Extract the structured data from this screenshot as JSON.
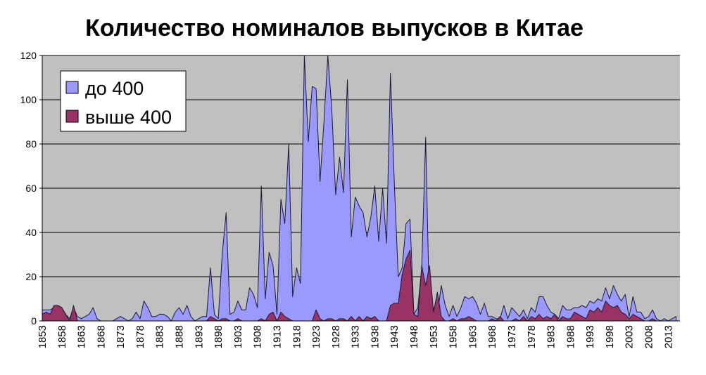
{
  "chart_data": {
    "type": "area",
    "title": "Количество номиналов выпусков в Китае",
    "xlabel": "",
    "ylabel": "",
    "xlim": [
      1853,
      2016
    ],
    "ylim": [
      0,
      120
    ],
    "yticks": [
      0,
      20,
      40,
      60,
      80,
      100,
      120
    ],
    "xticks": [
      1853,
      1858,
      1863,
      1868,
      1873,
      1878,
      1883,
      1888,
      1893,
      1898,
      1903,
      1908,
      1913,
      1918,
      1923,
      1928,
      1933,
      1938,
      1943,
      1948,
      1953,
      1958,
      1963,
      1968,
      1973,
      1978,
      1983,
      1988,
      1993,
      1998,
      2003,
      2008,
      2013
    ],
    "grid": true,
    "legend_position": "top-left",
    "colors": {
      "plot_bg": "#c0c0c0",
      "series_low": "#9999ff",
      "series_high": "#993366",
      "outline": "#1a1a33"
    },
    "series": [
      {
        "name": "до 400",
        "points": [
          [
            1853,
            5
          ],
          [
            1854,
            5
          ],
          [
            1855,
            5
          ],
          [
            1856,
            6
          ],
          [
            1857,
            7
          ],
          [
            1858,
            6
          ],
          [
            1859,
            3
          ],
          [
            1860,
            1
          ],
          [
            1861,
            6
          ],
          [
            1862,
            2
          ],
          [
            1863,
            1
          ],
          [
            1864,
            2
          ],
          [
            1865,
            3
          ],
          [
            1866,
            6
          ],
          [
            1867,
            1
          ],
          [
            1868,
            0
          ],
          [
            1869,
            0
          ],
          [
            1870,
            0
          ],
          [
            1871,
            0
          ],
          [
            1872,
            1
          ],
          [
            1873,
            2
          ],
          [
            1874,
            1
          ],
          [
            1875,
            0
          ],
          [
            1876,
            1
          ],
          [
            1877,
            4
          ],
          [
            1878,
            1
          ],
          [
            1879,
            9
          ],
          [
            1880,
            6
          ],
          [
            1881,
            2
          ],
          [
            1882,
            2
          ],
          [
            1883,
            3
          ],
          [
            1884,
            3
          ],
          [
            1885,
            2
          ],
          [
            1886,
            0
          ],
          [
            1887,
            4
          ],
          [
            1888,
            6
          ],
          [
            1889,
            3
          ],
          [
            1890,
            7
          ],
          [
            1891,
            2
          ],
          [
            1892,
            0
          ],
          [
            1893,
            1
          ],
          [
            1894,
            2
          ],
          [
            1895,
            2
          ],
          [
            1896,
            24
          ],
          [
            1897,
            3
          ],
          [
            1898,
            1
          ],
          [
            1899,
            30
          ],
          [
            1900,
            49
          ],
          [
            1901,
            3
          ],
          [
            1902,
            4
          ],
          [
            1903,
            9
          ],
          [
            1904,
            5
          ],
          [
            1905,
            5
          ],
          [
            1906,
            15
          ],
          [
            1907,
            12
          ],
          [
            1908,
            6
          ],
          [
            1909,
            61
          ],
          [
            1910,
            10
          ],
          [
            1911,
            31
          ],
          [
            1912,
            25
          ],
          [
            1913,
            3
          ],
          [
            1914,
            55
          ],
          [
            1915,
            44
          ],
          [
            1916,
            80
          ],
          [
            1917,
            11
          ],
          [
            1918,
            24
          ],
          [
            1919,
            17
          ],
          [
            1920,
            121
          ],
          [
            1921,
            81
          ],
          [
            1922,
            106
          ],
          [
            1923,
            105
          ],
          [
            1924,
            63
          ],
          [
            1925,
            90
          ],
          [
            1926,
            121
          ],
          [
            1927,
            96
          ],
          [
            1928,
            57
          ],
          [
            1929,
            74
          ],
          [
            1930,
            58
          ],
          [
            1931,
            109
          ],
          [
            1932,
            38
          ],
          [
            1933,
            56
          ],
          [
            1934,
            52
          ],
          [
            1935,
            49
          ],
          [
            1936,
            38
          ],
          [
            1937,
            47
          ],
          [
            1938,
            61
          ],
          [
            1939,
            36
          ],
          [
            1940,
            60
          ],
          [
            1941,
            35
          ],
          [
            1942,
            112
          ],
          [
            1943,
            62
          ],
          [
            1944,
            20
          ],
          [
            1945,
            24
          ],
          [
            1946,
            44
          ],
          [
            1947,
            46
          ],
          [
            1948,
            3
          ],
          [
            1949,
            6
          ],
          [
            1950,
            24
          ],
          [
            1951,
            83
          ],
          [
            1952,
            2
          ],
          [
            1953,
            6
          ],
          [
            1954,
            3
          ],
          [
            1955,
            16
          ],
          [
            1956,
            7
          ],
          [
            1957,
            2
          ],
          [
            1958,
            7
          ],
          [
            1959,
            2
          ],
          [
            1960,
            6
          ],
          [
            1961,
            11
          ],
          [
            1962,
            10
          ],
          [
            1963,
            11
          ],
          [
            1964,
            8
          ],
          [
            1965,
            3
          ],
          [
            1966,
            8
          ],
          [
            1967,
            2
          ],
          [
            1968,
            2
          ],
          [
            1969,
            1
          ],
          [
            1970,
            1
          ],
          [
            1971,
            7
          ],
          [
            1972,
            1
          ],
          [
            1973,
            6
          ],
          [
            1974,
            4
          ],
          [
            1975,
            2
          ],
          [
            1976,
            5
          ],
          [
            1977,
            1
          ],
          [
            1978,
            6
          ],
          [
            1979,
            4
          ],
          [
            1980,
            11
          ],
          [
            1981,
            11
          ],
          [
            1982,
            7
          ],
          [
            1983,
            4
          ],
          [
            1984,
            3
          ],
          [
            1985,
            1
          ],
          [
            1986,
            7
          ],
          [
            1987,
            5
          ],
          [
            1988,
            5
          ],
          [
            1989,
            6
          ],
          [
            1990,
            6
          ],
          [
            1991,
            7
          ],
          [
            1992,
            6
          ],
          [
            1993,
            9
          ],
          [
            1994,
            8
          ],
          [
            1995,
            10
          ],
          [
            1996,
            9
          ],
          [
            1997,
            15
          ],
          [
            1998,
            10
          ],
          [
            1999,
            16
          ],
          [
            2000,
            12
          ],
          [
            2001,
            9
          ],
          [
            2002,
            12
          ],
          [
            2003,
            2
          ],
          [
            2004,
            11
          ],
          [
            2005,
            4
          ],
          [
            2006,
            4
          ],
          [
            2007,
            1
          ],
          [
            2008,
            2
          ],
          [
            2009,
            5
          ],
          [
            2010,
            1
          ],
          [
            2011,
            0
          ],
          [
            2012,
            1
          ],
          [
            2013,
            0
          ],
          [
            2014,
            1
          ],
          [
            2015,
            2
          ]
        ]
      },
      {
        "name": "выше 400",
        "points": [
          [
            1853,
            3
          ],
          [
            1854,
            4
          ],
          [
            1855,
            3
          ],
          [
            1856,
            7
          ],
          [
            1857,
            7
          ],
          [
            1858,
            6
          ],
          [
            1859,
            3
          ],
          [
            1860,
            0
          ],
          [
            1861,
            7
          ],
          [
            1862,
            0
          ],
          [
            1863,
            0
          ],
          [
            1864,
            0
          ],
          [
            1865,
            0
          ],
          [
            1866,
            0
          ],
          [
            1867,
            0
          ],
          [
            1868,
            0
          ],
          [
            1869,
            0
          ],
          [
            1870,
            0
          ],
          [
            1871,
            0
          ],
          [
            1872,
            0
          ],
          [
            1873,
            0
          ],
          [
            1874,
            0
          ],
          [
            1875,
            0
          ],
          [
            1876,
            0
          ],
          [
            1877,
            0
          ],
          [
            1878,
            0
          ],
          [
            1879,
            0
          ],
          [
            1880,
            0
          ],
          [
            1881,
            0
          ],
          [
            1882,
            0
          ],
          [
            1883,
            0
          ],
          [
            1884,
            0
          ],
          [
            1885,
            0
          ],
          [
            1886,
            0
          ],
          [
            1887,
            0
          ],
          [
            1888,
            0
          ],
          [
            1889,
            0
          ],
          [
            1890,
            0
          ],
          [
            1891,
            0
          ],
          [
            1892,
            0
          ],
          [
            1893,
            0
          ],
          [
            1894,
            0
          ],
          [
            1895,
            0
          ],
          [
            1896,
            2
          ],
          [
            1897,
            1
          ],
          [
            1898,
            0
          ],
          [
            1899,
            1
          ],
          [
            1900,
            1
          ],
          [
            1901,
            0
          ],
          [
            1902,
            0
          ],
          [
            1903,
            1
          ],
          [
            1904,
            0
          ],
          [
            1905,
            0
          ],
          [
            1906,
            0
          ],
          [
            1907,
            0
          ],
          [
            1908,
            0
          ],
          [
            1909,
            1
          ],
          [
            1910,
            0
          ],
          [
            1911,
            3
          ],
          [
            1912,
            4
          ],
          [
            1913,
            0
          ],
          [
            1914,
            4
          ],
          [
            1915,
            2
          ],
          [
            1916,
            1
          ],
          [
            1917,
            0
          ],
          [
            1918,
            0
          ],
          [
            1919,
            0
          ],
          [
            1920,
            0
          ],
          [
            1921,
            0
          ],
          [
            1922,
            0
          ],
          [
            1923,
            5
          ],
          [
            1924,
            1
          ],
          [
            1925,
            0
          ],
          [
            1926,
            1
          ],
          [
            1927,
            1
          ],
          [
            1928,
            0
          ],
          [
            1929,
            1
          ],
          [
            1930,
            1
          ],
          [
            1931,
            0
          ],
          [
            1932,
            2
          ],
          [
            1933,
            0
          ],
          [
            1934,
            2
          ],
          [
            1935,
            0
          ],
          [
            1936,
            2
          ],
          [
            1937,
            1
          ],
          [
            1938,
            2
          ],
          [
            1939,
            0
          ],
          [
            1940,
            0
          ],
          [
            1941,
            0
          ],
          [
            1942,
            7
          ],
          [
            1943,
            8
          ],
          [
            1944,
            8
          ],
          [
            1945,
            21
          ],
          [
            1946,
            28
          ],
          [
            1947,
            32
          ],
          [
            1948,
            3
          ],
          [
            1949,
            2
          ],
          [
            1950,
            25
          ],
          [
            1951,
            16
          ],
          [
            1952,
            25
          ],
          [
            1953,
            4
          ],
          [
            1954,
            13
          ],
          [
            1955,
            2
          ],
          [
            1956,
            0
          ],
          [
            1957,
            0
          ],
          [
            1958,
            1
          ],
          [
            1959,
            0
          ],
          [
            1960,
            1
          ],
          [
            1961,
            1
          ],
          [
            1962,
            2
          ],
          [
            1963,
            1
          ],
          [
            1964,
            0
          ],
          [
            1965,
            0
          ],
          [
            1966,
            0
          ],
          [
            1967,
            0
          ],
          [
            1968,
            1
          ],
          [
            1969,
            0
          ],
          [
            1970,
            2
          ],
          [
            1971,
            0
          ],
          [
            1972,
            0
          ],
          [
            1973,
            0
          ],
          [
            1974,
            1
          ],
          [
            1975,
            0
          ],
          [
            1976,
            2
          ],
          [
            1977,
            0
          ],
          [
            1978,
            2
          ],
          [
            1979,
            1
          ],
          [
            1980,
            3
          ],
          [
            1981,
            1
          ],
          [
            1982,
            2
          ],
          [
            1983,
            1
          ],
          [
            1984,
            3
          ],
          [
            1985,
            0
          ],
          [
            1986,
            2
          ],
          [
            1987,
            1
          ],
          [
            1988,
            1
          ],
          [
            1989,
            4
          ],
          [
            1990,
            3
          ],
          [
            1991,
            2
          ],
          [
            1992,
            1
          ],
          [
            1993,
            5
          ],
          [
            1994,
            4
          ],
          [
            1995,
            6
          ],
          [
            1996,
            4
          ],
          [
            1997,
            9
          ],
          [
            1998,
            7
          ],
          [
            1999,
            6
          ],
          [
            2000,
            7
          ],
          [
            2001,
            4
          ],
          [
            2002,
            3
          ],
          [
            2003,
            1
          ],
          [
            2004,
            3
          ],
          [
            2005,
            2
          ],
          [
            2006,
            1
          ],
          [
            2007,
            0
          ],
          [
            2008,
            0
          ],
          [
            2009,
            1
          ],
          [
            2010,
            0
          ],
          [
            2011,
            0
          ],
          [
            2012,
            0
          ],
          [
            2013,
            0
          ],
          [
            2014,
            0
          ],
          [
            2015,
            0
          ]
        ]
      }
    ]
  }
}
